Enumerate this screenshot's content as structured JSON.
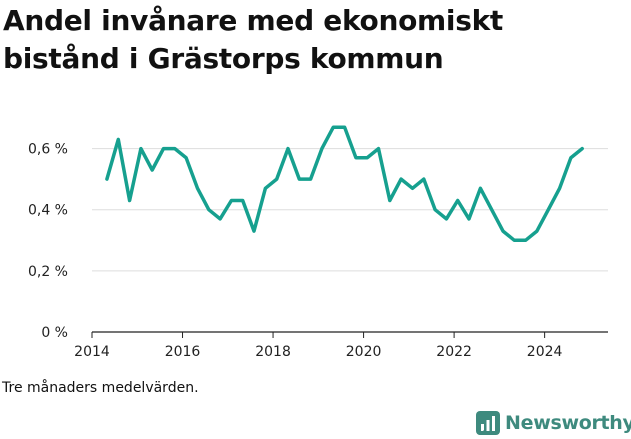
{
  "title": "Andel invånare med ekonomiskt bistånd i Grästorps kommun",
  "footnote": "Tre månaders medelvärden.",
  "brand": "Newsworthy",
  "colors": {
    "line": "#16a08f",
    "grid": "#dddddd",
    "axis": "#222222",
    "brand": "#3e8a7e"
  },
  "chart_data": {
    "type": "line",
    "title": "Andel invånare med ekonomiskt bistånd i Grästorps kommun",
    "xlabel": "",
    "ylabel": "",
    "xlim": [
      2014,
      2025.4
    ],
    "ylim": [
      0,
      0.7
    ],
    "x_ticks": [
      2014,
      2016,
      2018,
      2020,
      2022,
      2024
    ],
    "y_ticks": [
      0,
      0.2,
      0.4,
      0.6
    ],
    "y_tick_labels": [
      "0 %",
      "0,2 %",
      "0,4 %",
      "0,6 %"
    ],
    "grid": "horizontal",
    "legend": "none",
    "series": [
      {
        "x": [
          2014.33,
          2014.58,
          2014.83,
          2015.08,
          2015.33,
          2015.58,
          2015.83,
          2016.08,
          2016.33,
          2016.58,
          2016.83,
          2017.08,
          2017.33,
          2017.58,
          2017.83,
          2018.08,
          2018.33,
          2018.58,
          2018.83,
          2019.08,
          2019.33,
          2019.58,
          2019.83,
          2020.08,
          2020.33,
          2020.58,
          2020.83,
          2021.08,
          2021.33,
          2021.58,
          2021.83,
          2022.08,
          2022.33,
          2022.58,
          2022.83,
          2023.08,
          2023.33,
          2023.58,
          2023.83,
          2024.08,
          2024.33,
          2024.58,
          2024.83
        ],
        "values": [
          0.5,
          0.63,
          0.43,
          0.6,
          0.53,
          0.6,
          0.6,
          0.57,
          0.47,
          0.4,
          0.37,
          0.43,
          0.43,
          0.33,
          0.47,
          0.5,
          0.6,
          0.5,
          0.5,
          0.6,
          0.67,
          0.67,
          0.57,
          0.57,
          0.6,
          0.43,
          0.5,
          0.47,
          0.5,
          0.4,
          0.37,
          0.43,
          0.37,
          0.47,
          0.4,
          0.33,
          0.3,
          0.3,
          0.33,
          0.4,
          0.47,
          0.57,
          0.6
        ]
      }
    ]
  }
}
